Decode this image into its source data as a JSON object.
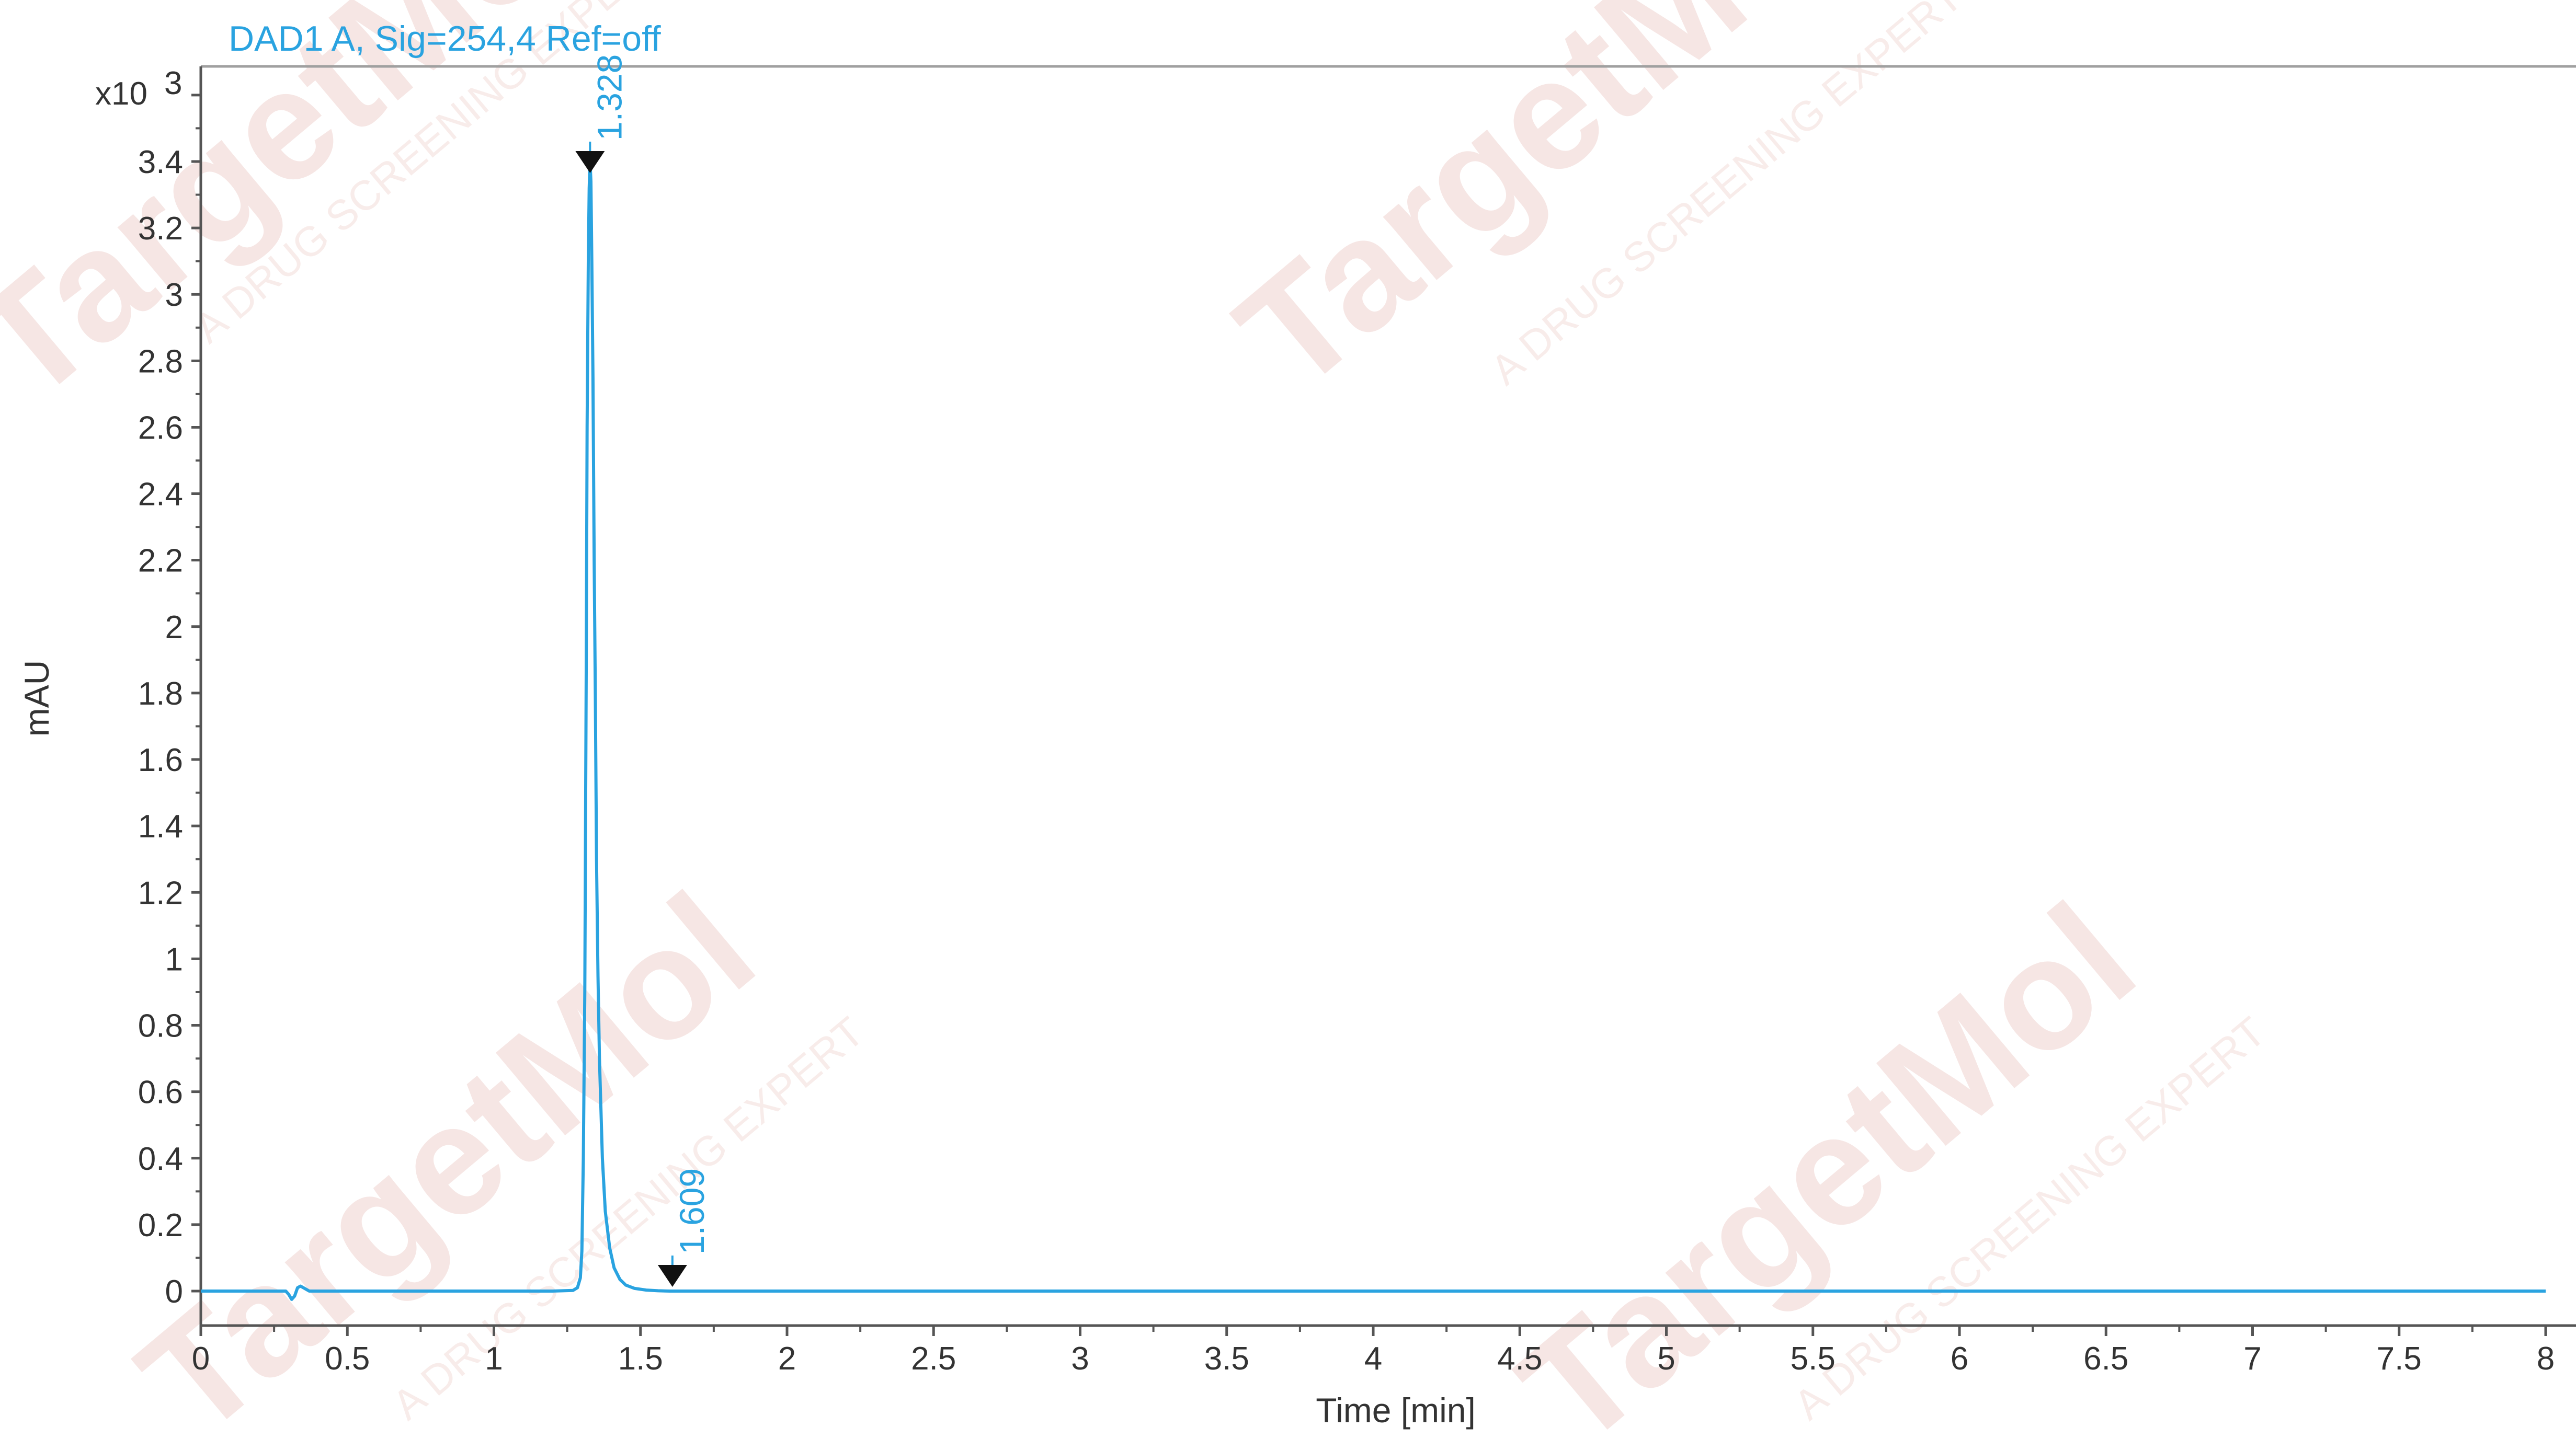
{
  "watermark": {
    "brand": "TargetMol",
    "tagline": "A DRUG SCREENING EXPERT"
  },
  "chart_data": {
    "type": "line",
    "title": "DAD1 A, Sig=254,4 Ref=off",
    "xlabel": "Time [min]",
    "ylabel": "mAU",
    "y_multiplier_label": "x10",
    "y_multiplier_exponent": "3",
    "xlim": [
      0,
      8
    ],
    "ylim": [
      -0.11,
      3.55
    ],
    "x_ticks": [
      "0",
      "0.5",
      "1",
      "1.5",
      "2",
      "2.5",
      "3",
      "3.5",
      "4",
      "4.5",
      "5",
      "5.5",
      "6",
      "6.5",
      "7",
      "7.5",
      "8"
    ],
    "y_ticks": [
      "0",
      "0.2",
      "0.4",
      "0.6",
      "0.8",
      "1",
      "1.2",
      "1.4",
      "1.6",
      "1.8",
      "2",
      "2.2",
      "2.4",
      "2.6",
      "2.8",
      "3",
      "3.2",
      "3.4"
    ],
    "grid": false,
    "color": "#2aa3e0",
    "series": [
      {
        "x": [
          0.0,
          0.29,
          0.3,
          0.31,
          0.32,
          0.33,
          0.34,
          0.35,
          0.37,
          1.2,
          1.27,
          1.285,
          1.295,
          1.3,
          1.305,
          1.31,
          1.315,
          1.318,
          1.322,
          1.325,
          1.328,
          1.331,
          1.334,
          1.338,
          1.342,
          1.346,
          1.35,
          1.355,
          1.36,
          1.37,
          1.38,
          1.395,
          1.41,
          1.43,
          1.45,
          1.48,
          1.52,
          1.56,
          1.6,
          8.0
        ],
        "y": [
          0.0,
          0.0,
          -0.01,
          -0.025,
          -0.015,
          0.01,
          0.015,
          0.01,
          0.0,
          0.0,
          0.002,
          0.01,
          0.04,
          0.12,
          0.4,
          0.9,
          1.9,
          2.6,
          3.1,
          3.32,
          3.4,
          3.34,
          3.1,
          2.75,
          2.2,
          1.8,
          1.3,
          0.95,
          0.7,
          0.4,
          0.24,
          0.13,
          0.07,
          0.035,
          0.018,
          0.008,
          0.003,
          0.001,
          0.0,
          0.0
        ]
      }
    ],
    "peaks": [
      {
        "time": 1.328,
        "label": "1.328",
        "y": 3.4
      },
      {
        "time": 1.609,
        "label": "1.609",
        "y": 0.0
      }
    ]
  }
}
